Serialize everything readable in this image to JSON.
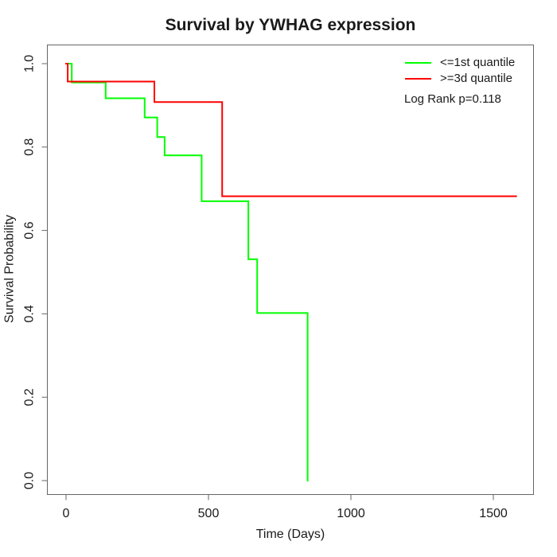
{
  "title": "Survival by YWHAG expression",
  "legend": {
    "items": [
      {
        "label": "<=1st quantile",
        "color": "#00ff00"
      },
      {
        "label": ">=3d quantile",
        "color": "#ff0000"
      }
    ],
    "note": "Log Rank p=0.118"
  },
  "chart_data": {
    "type": "line",
    "subtype": "kaplan-meier-step-survival",
    "title": "Survival by YWHAG expression",
    "xlabel": "Time (Days)",
    "ylabel": "Survival Probability",
    "xlim": [
      0,
      1640
    ],
    "ylim": [
      0,
      1.05
    ],
    "grid": false,
    "legend_position": "top-right",
    "xticks": {
      "values": [
        0,
        500,
        1000,
        1500
      ],
      "labels": [
        "0",
        "500",
        "1000",
        "1500"
      ]
    },
    "yticks": {
      "values": [
        0,
        0.2,
        0.4,
        0.6,
        0.8,
        1.0
      ],
      "labels": [
        "0.0",
        "0.2",
        "0.4",
        "0.6",
        "0.8",
        "1.0"
      ]
    },
    "series": [
      {
        "name": "<=1st quantile",
        "color": "#00ff00",
        "points": [
          [
            0,
            1.0
          ],
          [
            20,
            0.955
          ],
          [
            139,
            0.917
          ],
          [
            276,
            0.871
          ],
          [
            320,
            0.824
          ],
          [
            346,
            0.78
          ],
          [
            476,
            0.67
          ],
          [
            640,
            0.531
          ],
          [
            671,
            0.402
          ],
          [
            848,
            0.0
          ]
        ]
      },
      {
        "name": ">=3d quantile",
        "color": "#ff0000",
        "points": [
          [
            0,
            1.0
          ],
          [
            6,
            0.957
          ],
          [
            310,
            0.908
          ],
          [
            548,
            0.682
          ],
          [
            1580,
            0.682
          ]
        ]
      }
    ],
    "annotation": "Log Rank p=0.118"
  }
}
